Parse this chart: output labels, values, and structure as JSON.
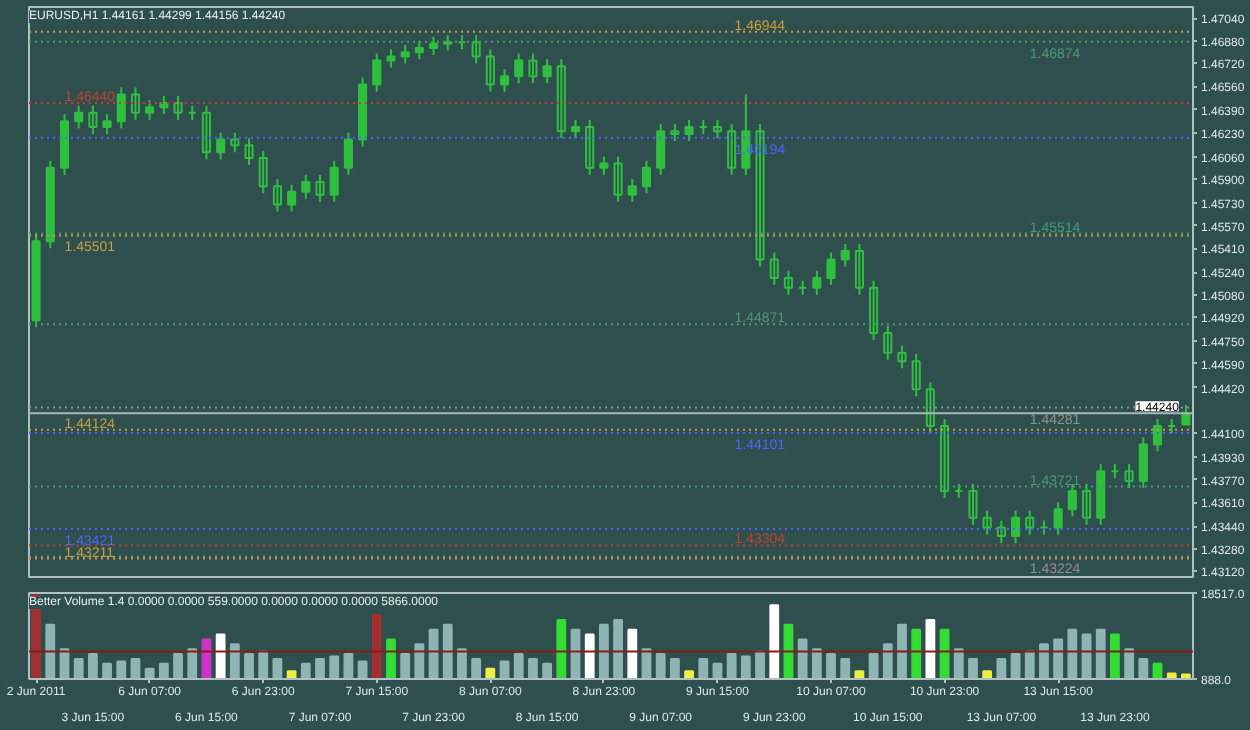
{
  "chart_data": [
    {
      "type": "candlestick",
      "title": "EURUSD,H1 1.44161 1.44299 1.44156 1.44240",
      "color": "#2fbf3f",
      "tick_labels": "y",
      "grid": false,
      "categories": [
        null,
        null,
        null,
        null,
        null,
        null,
        null,
        null,
        null,
        null,
        null,
        null,
        null,
        null,
        null,
        null,
        null,
        null,
        null,
        null,
        null,
        null,
        null,
        null,
        null,
        null,
        null,
        null,
        null,
        null,
        null,
        null,
        null,
        null,
        null,
        null,
        null,
        null,
        null,
        null,
        null,
        null,
        null,
        null,
        null,
        null,
        null,
        null,
        null,
        null,
        null,
        null,
        null,
        null,
        null,
        null,
        null,
        null,
        null,
        null,
        null,
        null,
        null,
        null,
        null,
        null,
        null,
        null,
        null,
        null,
        null,
        null,
        null,
        null,
        null,
        null,
        null,
        null,
        null,
        null,
        null,
        null
      ],
      "ohlc": [
        [
          1.449,
          1.4551,
          1.4485,
          1.4546
        ],
        [
          1.4546,
          1.4603,
          1.4541,
          1.4598
        ],
        [
          1.4598,
          1.4636,
          1.4593,
          1.4631
        ],
        [
          1.4631,
          1.4642,
          1.4626,
          1.4637
        ],
        [
          1.4637,
          1.4642,
          1.4622,
          1.4627
        ],
        [
          1.4627,
          1.4636,
          1.4622,
          1.4631
        ],
        [
          1.4631,
          1.4655,
          1.4626,
          1.465
        ],
        [
          1.465,
          1.4655,
          1.4632,
          1.4637
        ],
        [
          1.4637,
          1.4646,
          1.4632,
          1.4641
        ],
        [
          1.4641,
          1.4649,
          1.4636,
          1.4644
        ],
        [
          1.4644,
          1.4649,
          1.4632,
          1.4637
        ],
        [
          1.4637,
          1.4642,
          1.4632,
          1.4637
        ],
        [
          1.4637,
          1.4642,
          1.4604,
          1.4609
        ],
        [
          1.4609,
          1.4623,
          1.4604,
          1.4618
        ],
        [
          1.4618,
          1.4623,
          1.4609,
          1.4614
        ],
        [
          1.4614,
          1.4619,
          1.46,
          1.4605
        ],
        [
          1.4605,
          1.461,
          1.458,
          1.4585
        ],
        [
          1.4585,
          1.459,
          1.4567,
          1.4572
        ],
        [
          1.4572,
          1.4586,
          1.4567,
          1.4581
        ],
        [
          1.4581,
          1.4593,
          1.4576,
          1.4588
        ],
        [
          1.4588,
          1.4593,
          1.4574,
          1.4579
        ],
        [
          1.4579,
          1.4603,
          1.4574,
          1.4598
        ],
        [
          1.4598,
          1.4623,
          1.4593,
          1.4618
        ],
        [
          1.4618,
          1.4662,
          1.4613,
          1.4657
        ],
        [
          1.4657,
          1.4679,
          1.4652,
          1.4674
        ],
        [
          1.4674,
          1.4682,
          1.4669,
          1.4677
        ],
        [
          1.4677,
          1.4685,
          1.4672,
          1.468
        ],
        [
          1.468,
          1.4688,
          1.4675,
          1.4683
        ],
        [
          1.4683,
          1.4691,
          1.4678,
          1.4686
        ],
        [
          1.4686,
          1.4692,
          1.4681,
          1.4687
        ],
        [
          1.4687,
          1.4692,
          1.4682,
          1.4687
        ],
        [
          1.4687,
          1.4692,
          1.4672,
          1.4677
        ],
        [
          1.4677,
          1.4682,
          1.4652,
          1.4657
        ],
        [
          1.4657,
          1.4668,
          1.4652,
          1.4663
        ],
        [
          1.4663,
          1.4679,
          1.4658,
          1.4674
        ],
        [
          1.4674,
          1.4679,
          1.4658,
          1.4663
        ],
        [
          1.4663,
          1.4675,
          1.4658,
          1.467
        ],
        [
          1.467,
          1.4675,
          1.4619,
          1.4624
        ],
        [
          1.4624,
          1.4632,
          1.4619,
          1.4627
        ],
        [
          1.4627,
          1.4632,
          1.4593,
          1.4598
        ],
        [
          1.4598,
          1.4606,
          1.4593,
          1.4601
        ],
        [
          1.4601,
          1.4606,
          1.4574,
          1.4579
        ],
        [
          1.4579,
          1.459,
          1.4574,
          1.4585
        ],
        [
          1.4585,
          1.4603,
          1.458,
          1.4598
        ],
        [
          1.4598,
          1.4629,
          1.4593,
          1.4624
        ],
        [
          1.4624,
          1.4629,
          1.4617,
          1.4622
        ],
        [
          1.4622,
          1.4632,
          1.4617,
          1.4627
        ],
        [
          1.4627,
          1.4632,
          1.4622,
          1.4627
        ],
        [
          1.4627,
          1.4632,
          1.4619,
          1.4624
        ],
        [
          1.4624,
          1.4629,
          1.4593,
          1.4598
        ],
        [
          1.4598,
          1.465,
          1.4593,
          1.4624
        ],
        [
          1.4624,
          1.4629,
          1.4528,
          1.4533
        ],
        [
          1.4533,
          1.4538,
          1.4515,
          1.452
        ],
        [
          1.452,
          1.4525,
          1.4508,
          1.4513
        ],
        [
          1.4513,
          1.4518,
          1.4508,
          1.4513
        ],
        [
          1.4513,
          1.4525,
          1.4508,
          1.452
        ],
        [
          1.452,
          1.4538,
          1.4515,
          1.4533
        ],
        [
          1.4533,
          1.4544,
          1.4528,
          1.4539
        ],
        [
          1.4539,
          1.4544,
          1.4508,
          1.4513
        ],
        [
          1.4513,
          1.4518,
          1.4476,
          1.4481
        ],
        [
          1.4481,
          1.4486,
          1.4462,
          1.4467
        ],
        [
          1.4467,
          1.4472,
          1.4456,
          1.4461
        ],
        [
          1.4461,
          1.4466,
          1.4436,
          1.4441
        ],
        [
          1.4441,
          1.4446,
          1.441,
          1.4415
        ],
        [
          1.4415,
          1.442,
          1.4364,
          1.4369
        ],
        [
          1.4369,
          1.4374,
          1.4364,
          1.4369
        ],
        [
          1.4369,
          1.4374,
          1.4345,
          1.435
        ],
        [
          1.435,
          1.4355,
          1.4338,
          1.4343
        ],
        [
          1.4343,
          1.4348,
          1.4332,
          1.4337
        ],
        [
          1.4337,
          1.4355,
          1.4332,
          1.435
        ],
        [
          1.435,
          1.4355,
          1.4338,
          1.4343
        ],
        [
          1.4343,
          1.4348,
          1.4338,
          1.4343
        ],
        [
          1.4343,
          1.4361,
          1.4338,
          1.4356
        ],
        [
          1.4356,
          1.4374,
          1.4351,
          1.4369
        ],
        [
          1.4369,
          1.4374,
          1.4345,
          1.435
        ],
        [
          1.435,
          1.4388,
          1.4345,
          1.4383
        ],
        [
          1.4383,
          1.4388,
          1.4378,
          1.4383
        ],
        [
          1.4383,
          1.4388,
          1.4371,
          1.4376
        ],
        [
          1.4376,
          1.4407,
          1.4371,
          1.4402
        ],
        [
          1.4402,
          1.442,
          1.4397,
          1.4415
        ],
        [
          1.4415,
          1.442,
          1.441,
          1.4415
        ],
        [
          1.44161,
          1.44299,
          1.44156,
          1.4424
        ]
      ],
      "ylim": [
        1.4308,
        1.4712
      ],
      "yticks": [
        {
          "value": 1.4704,
          "label": "1.47040"
        },
        {
          "value": 1.4688,
          "label": "1.46880"
        },
        {
          "value": 1.4672,
          "label": "1.46720"
        },
        {
          "value": 1.4656,
          "label": "1.46560"
        },
        {
          "value": 1.4639,
          "label": "1.46390"
        },
        {
          "value": 1.4623,
          "label": "1.46230"
        },
        {
          "value": 1.4606,
          "label": "1.46060"
        },
        {
          "value": 1.459,
          "label": "1.45900"
        },
        {
          "value": 1.4573,
          "label": "1.45730"
        },
        {
          "value": 1.4557,
          "label": "1.45570"
        },
        {
          "value": 1.4541,
          "label": "1.45410"
        },
        {
          "value": 1.4524,
          "label": "1.45240"
        },
        {
          "value": 1.4508,
          "label": "1.45080"
        },
        {
          "value": 1.4492,
          "label": "1.44920"
        },
        {
          "value": 1.4475,
          "label": "1.44750"
        },
        {
          "value": 1.4459,
          "label": "1.44590"
        },
        {
          "value": 1.4442,
          "label": "1.44420"
        },
        {
          "value": 1.441,
          "label": "1.44100"
        },
        {
          "value": 1.4393,
          "label": "1.43930"
        },
        {
          "value": 1.4377,
          "label": "1.43770"
        },
        {
          "value": 1.4361,
          "label": "1.43610"
        },
        {
          "value": 1.4344,
          "label": "1.43440"
        },
        {
          "value": 1.4328,
          "label": "1.43280"
        },
        {
          "value": 1.4312,
          "label": "1.43120"
        }
      ],
      "ref_lines": [
        {
          "axis": "y",
          "value": 1.46944,
          "label": "1.46944",
          "color": "#c8a040",
          "line_style": "dotted"
        },
        {
          "axis": "y",
          "value": 1.46874,
          "label": "1.46874",
          "color": "#4a9a70",
          "line_style": "dotted"
        },
        {
          "axis": "y",
          "value": 1.4644,
          "label": "1.46440",
          "color": "#c04030",
          "line_style": "dotted"
        },
        {
          "axis": "y",
          "value": 1.46194,
          "label": "1.46194",
          "color": "#4a66ff",
          "line_style": "dotted"
        },
        {
          "axis": "y",
          "value": 1.45514,
          "label": "1.45514",
          "color": "#4a9a70",
          "line_style": "dotted"
        },
        {
          "axis": "y",
          "value": 1.45501,
          "label": "1.45501",
          "color": "#c8a040",
          "line_style": "dotted"
        },
        {
          "axis": "y",
          "value": 1.44871,
          "label": "1.44871",
          "color": "#4a9a70",
          "line_style": "dotted"
        },
        {
          "axis": "y",
          "value": 1.44281,
          "label": "1.44281",
          "color": "#909090",
          "line_style": "dotted"
        },
        {
          "axis": "y",
          "value": 1.4424,
          "color": "#a8b8b8",
          "line_style": "solid"
        },
        {
          "axis": "y",
          "value": 1.44124,
          "label": "1.44124",
          "color": "#c8a040",
          "line_style": "dotted"
        },
        {
          "axis": "y",
          "value": 1.44101,
          "label": "1.44101",
          "color": "#4a66ff",
          "line_style": "dotted"
        },
        {
          "axis": "y",
          "value": 1.43721,
          "label": "1.43721",
          "color": "#4a9a70",
          "line_style": "dotted"
        },
        {
          "axis": "y",
          "value": 1.43421,
          "label": "1.43421",
          "color": "#4a66ff",
          "line_style": "dotted"
        },
        {
          "axis": "y",
          "value": 1.43304,
          "label": "1.43304",
          "color": "#c04030",
          "line_style": "dotted"
        },
        {
          "axis": "y",
          "value": 1.43224,
          "label": "1.43224",
          "color": "#909090",
          "line_style": "dotted"
        },
        {
          "axis": "y",
          "value": 1.43211,
          "label": "1.43211",
          "color": "#c8a040",
          "line_style": "dotted"
        }
      ],
      "annotations": [
        {
          "text": "1.44240",
          "y": 1.4424
        }
      ]
    },
    {
      "type": "bar",
      "title": "Better Volume 1.4 0.0000 0.0000 559.0000 0.0000 0.0000 0.0000 5866.0000",
      "grid": false,
      "categories": [
        "2 Jun 2011",
        null,
        null,
        null,
        "3 Jun 15:00",
        null,
        null,
        null,
        "6 Jun 07:00",
        null,
        null,
        null,
        "6 Jun 15:00",
        null,
        null,
        null,
        "6 Jun 23:00",
        null,
        null,
        null,
        "7 Jun 07:00",
        null,
        null,
        null,
        "7 Jun 15:00",
        null,
        null,
        null,
        "7 Jun 23:00",
        null,
        null,
        null,
        "8 Jun 07:00",
        null,
        null,
        null,
        "8 Jun 15:00",
        null,
        null,
        null,
        "8 Jun 23:00",
        null,
        null,
        null,
        "9 Jun 07:00",
        null,
        null,
        null,
        "9 Jun 15:00",
        null,
        null,
        null,
        "9 Jun 23:00",
        null,
        null,
        null,
        "10 Jun 07:00",
        null,
        null,
        null,
        "10 Jun 15:00",
        null,
        null,
        null,
        "10 Jun 23:00",
        null,
        null,
        null,
        "13 Jun 07:00",
        null,
        null,
        null,
        "13 Jun 15:00",
        null,
        null,
        null,
        "13 Jun 23:00",
        null,
        null,
        null,
        null,
        null
      ],
      "values": [
        18000,
        12000,
        7000,
        5000,
        6000,
        4000,
        4500,
        5000,
        3000,
        4000,
        6000,
        7000,
        9000,
        10000,
        8000,
        6000,
        6500,
        5000,
        2500,
        4000,
        5000,
        5500,
        6000,
        4500,
        14000,
        9000,
        6000,
        8000,
        11000,
        12000,
        7000,
        5000,
        3000,
        4500,
        6000,
        5000,
        4000,
        13000,
        11000,
        10000,
        12000,
        13000,
        11000,
        7000,
        6000,
        5000,
        2500,
        5000,
        4000,
        6000,
        5500,
        6500,
        16000,
        12000,
        9000,
        7000,
        6000,
        5000,
        2500,
        6000,
        8000,
        12000,
        11000,
        13000,
        11000,
        7000,
        5000,
        2500,
        5000,
        6000,
        6500,
        8000,
        9000,
        11000,
        10000,
        11000,
        10000,
        7000,
        5000,
        4000,
        2000,
        1800
      ],
      "colors": [
        "#a03030",
        "#8fb4b4",
        "#8fb4b4",
        "#8fb4b4",
        "#8fb4b4",
        "#8fb4b4",
        "#8fb4b4",
        "#8fb4b4",
        "#8fb4b4",
        "#8fb4b4",
        "#8fb4b4",
        "#8fb4b4",
        "#cc33cc",
        "#ffffff",
        "#8fb4b4",
        "#8fb4b4",
        "#8fb4b4",
        "#8fb4b4",
        "#eeee44",
        "#8fb4b4",
        "#8fb4b4",
        "#8fb4b4",
        "#8fb4b4",
        "#8fb4b4",
        "#a03030",
        "#33dd33",
        "#8fb4b4",
        "#8fb4b4",
        "#8fb4b4",
        "#8fb4b4",
        "#8fb4b4",
        "#8fb4b4",
        "#eeee44",
        "#8fb4b4",
        "#8fb4b4",
        "#8fb4b4",
        "#8fb4b4",
        "#33dd33",
        "#8fb4b4",
        "#ffffff",
        "#8fb4b4",
        "#8fb4b4",
        "#ffffff",
        "#8fb4b4",
        "#8fb4b4",
        "#8fb4b4",
        "#eeee44",
        "#8fb4b4",
        "#8fb4b4",
        "#8fb4b4",
        "#8fb4b4",
        "#8fb4b4",
        "#ffffff",
        "#33dd33",
        "#8fb4b4",
        "#8fb4b4",
        "#8fb4b4",
        "#8fb4b4",
        "#eeee44",
        "#8fb4b4",
        "#8fb4b4",
        "#8fb4b4",
        "#33dd33",
        "#ffffff",
        "#33dd33",
        "#8fb4b4",
        "#8fb4b4",
        "#eeee44",
        "#8fb4b4",
        "#8fb4b4",
        "#8fb4b4",
        "#8fb4b4",
        "#8fb4b4",
        "#8fb4b4",
        "#8fb4b4",
        "#8fb4b4",
        "#33dd33",
        "#8fb4b4",
        "#8fb4b4",
        "#33dd33",
        "#eeee44",
        "#eeee44"
      ],
      "ylim": [
        888,
        18517
      ],
      "yticks": [
        {
          "value": 888,
          "label": "888.0"
        },
        {
          "value": 18517,
          "label": "18517.0"
        }
      ],
      "ref_lines": [
        {
          "axis": "y",
          "value": 6500,
          "color": "#8b1a1a",
          "line_style": "solid"
        }
      ]
    }
  ]
}
